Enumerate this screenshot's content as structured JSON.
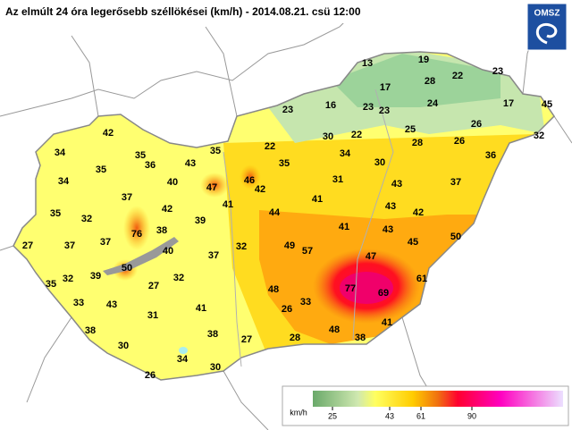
{
  "header": {
    "title": "Az elmúlt 24 óra legerősebb széllökései (km/h) - 2014.08.21. csü 12:00",
    "logo": "OMSZ"
  },
  "stations": [
    13,
    19,
    22,
    23,
    28,
    17,
    16,
    23,
    23,
    24,
    17,
    45,
    23,
    26,
    32,
    30,
    22,
    25,
    28,
    26,
    42,
    22,
    35,
    34,
    30,
    36,
    34,
    35,
    36,
    43,
    35,
    35,
    31,
    46,
    42,
    43,
    37,
    34,
    40,
    47,
    37,
    41,
    41,
    43,
    42,
    35,
    32,
    42,
    44,
    39,
    41,
    43,
    37,
    37,
    76,
    38,
    49,
    57,
    45,
    50,
    27,
    40,
    32,
    37,
    47,
    35,
    32,
    39,
    50,
    27,
    32,
    61,
    77,
    69,
    48,
    33,
    43,
    26,
    33,
    41,
    31,
    41,
    38,
    38,
    28,
    48,
    38,
    27,
    30,
    34,
    30,
    26
  ],
  "legend": {
    "unit": "km/h",
    "ticks": [
      25,
      43,
      61,
      90
    ]
  }
}
